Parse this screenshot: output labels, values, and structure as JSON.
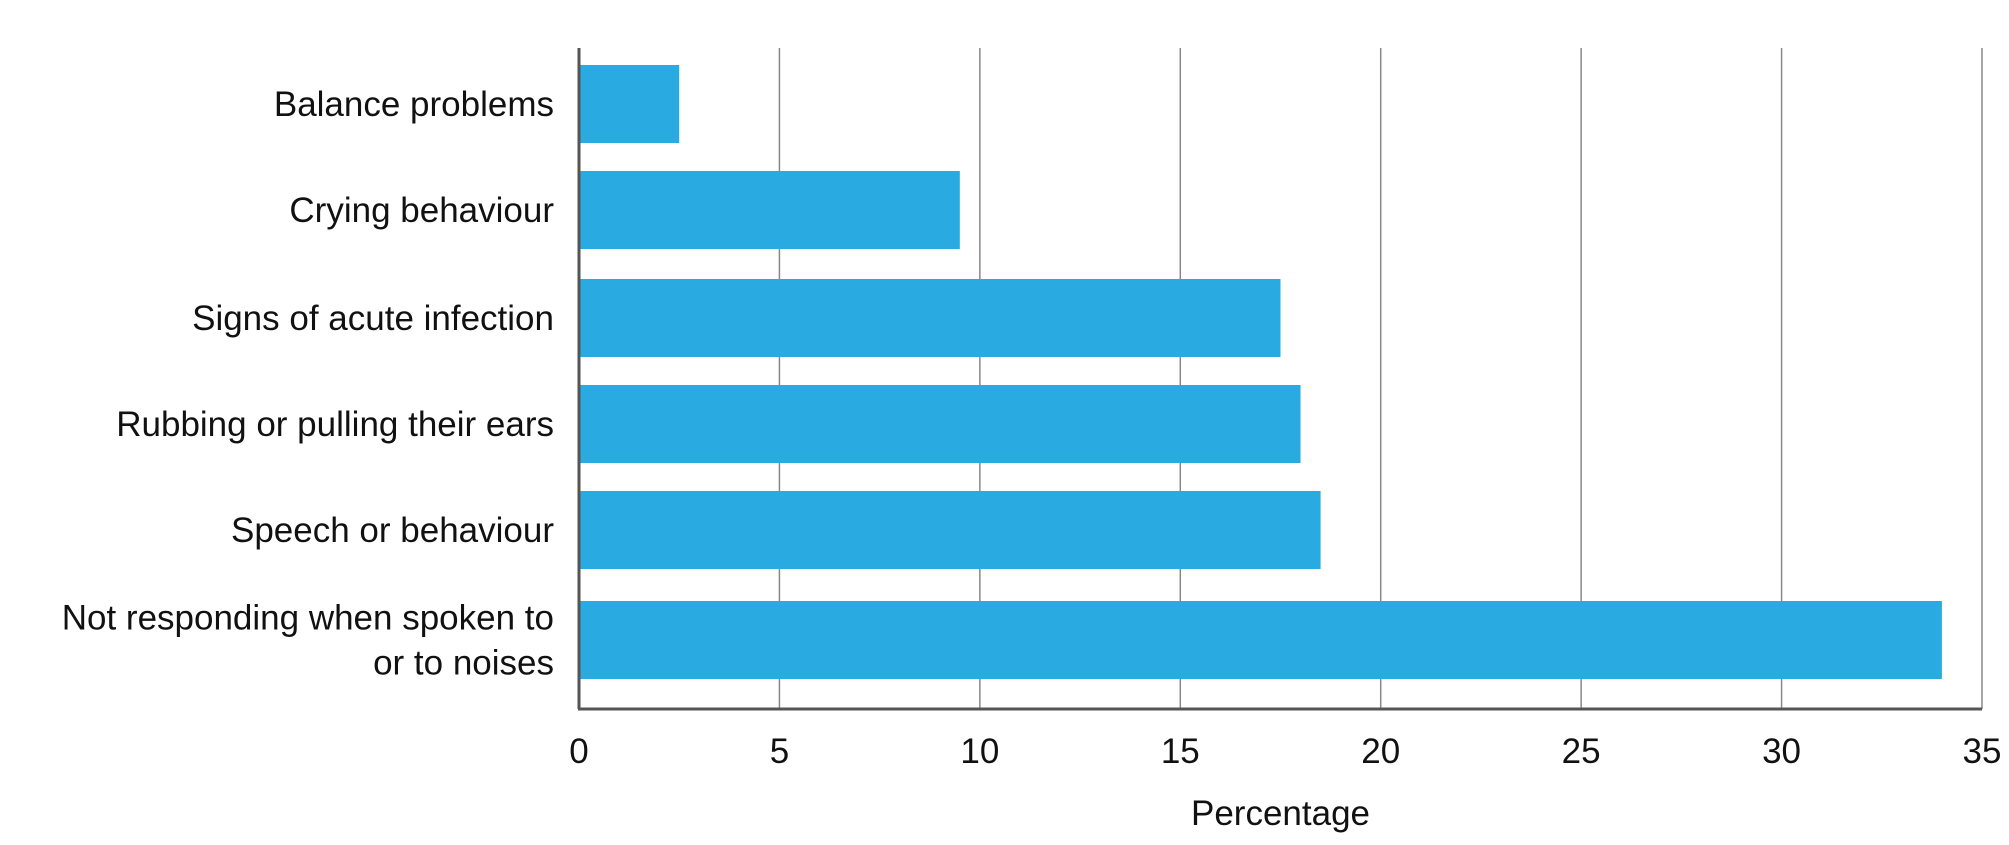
{
  "chart_data": {
    "type": "bar",
    "orientation": "horizontal",
    "title": "",
    "xlabel": "Percentage",
    "ylabel": "",
    "xlim": [
      0,
      35
    ],
    "x_ticks": [
      0,
      5,
      10,
      15,
      20,
      25,
      30,
      35
    ],
    "x_tick_labels": [
      "0",
      "5",
      "10",
      "15",
      "20",
      "25",
      "30",
      "35"
    ],
    "grid": true,
    "legend": "none",
    "bar_color": "#29abe2",
    "grid_color": "#888888",
    "axis_color": "#555555",
    "categories": [
      [
        "Balance problems"
      ],
      [
        "Crying behaviour"
      ],
      [
        "Signs of acute infection"
      ],
      [
        "Rubbing or pulling their ears"
      ],
      [
        "Speech or behaviour"
      ],
      [
        "Not responding when spoken to",
        "or to noises"
      ]
    ],
    "values": [
      2.5,
      9.5,
      17.5,
      18,
      18.5,
      34
    ]
  }
}
